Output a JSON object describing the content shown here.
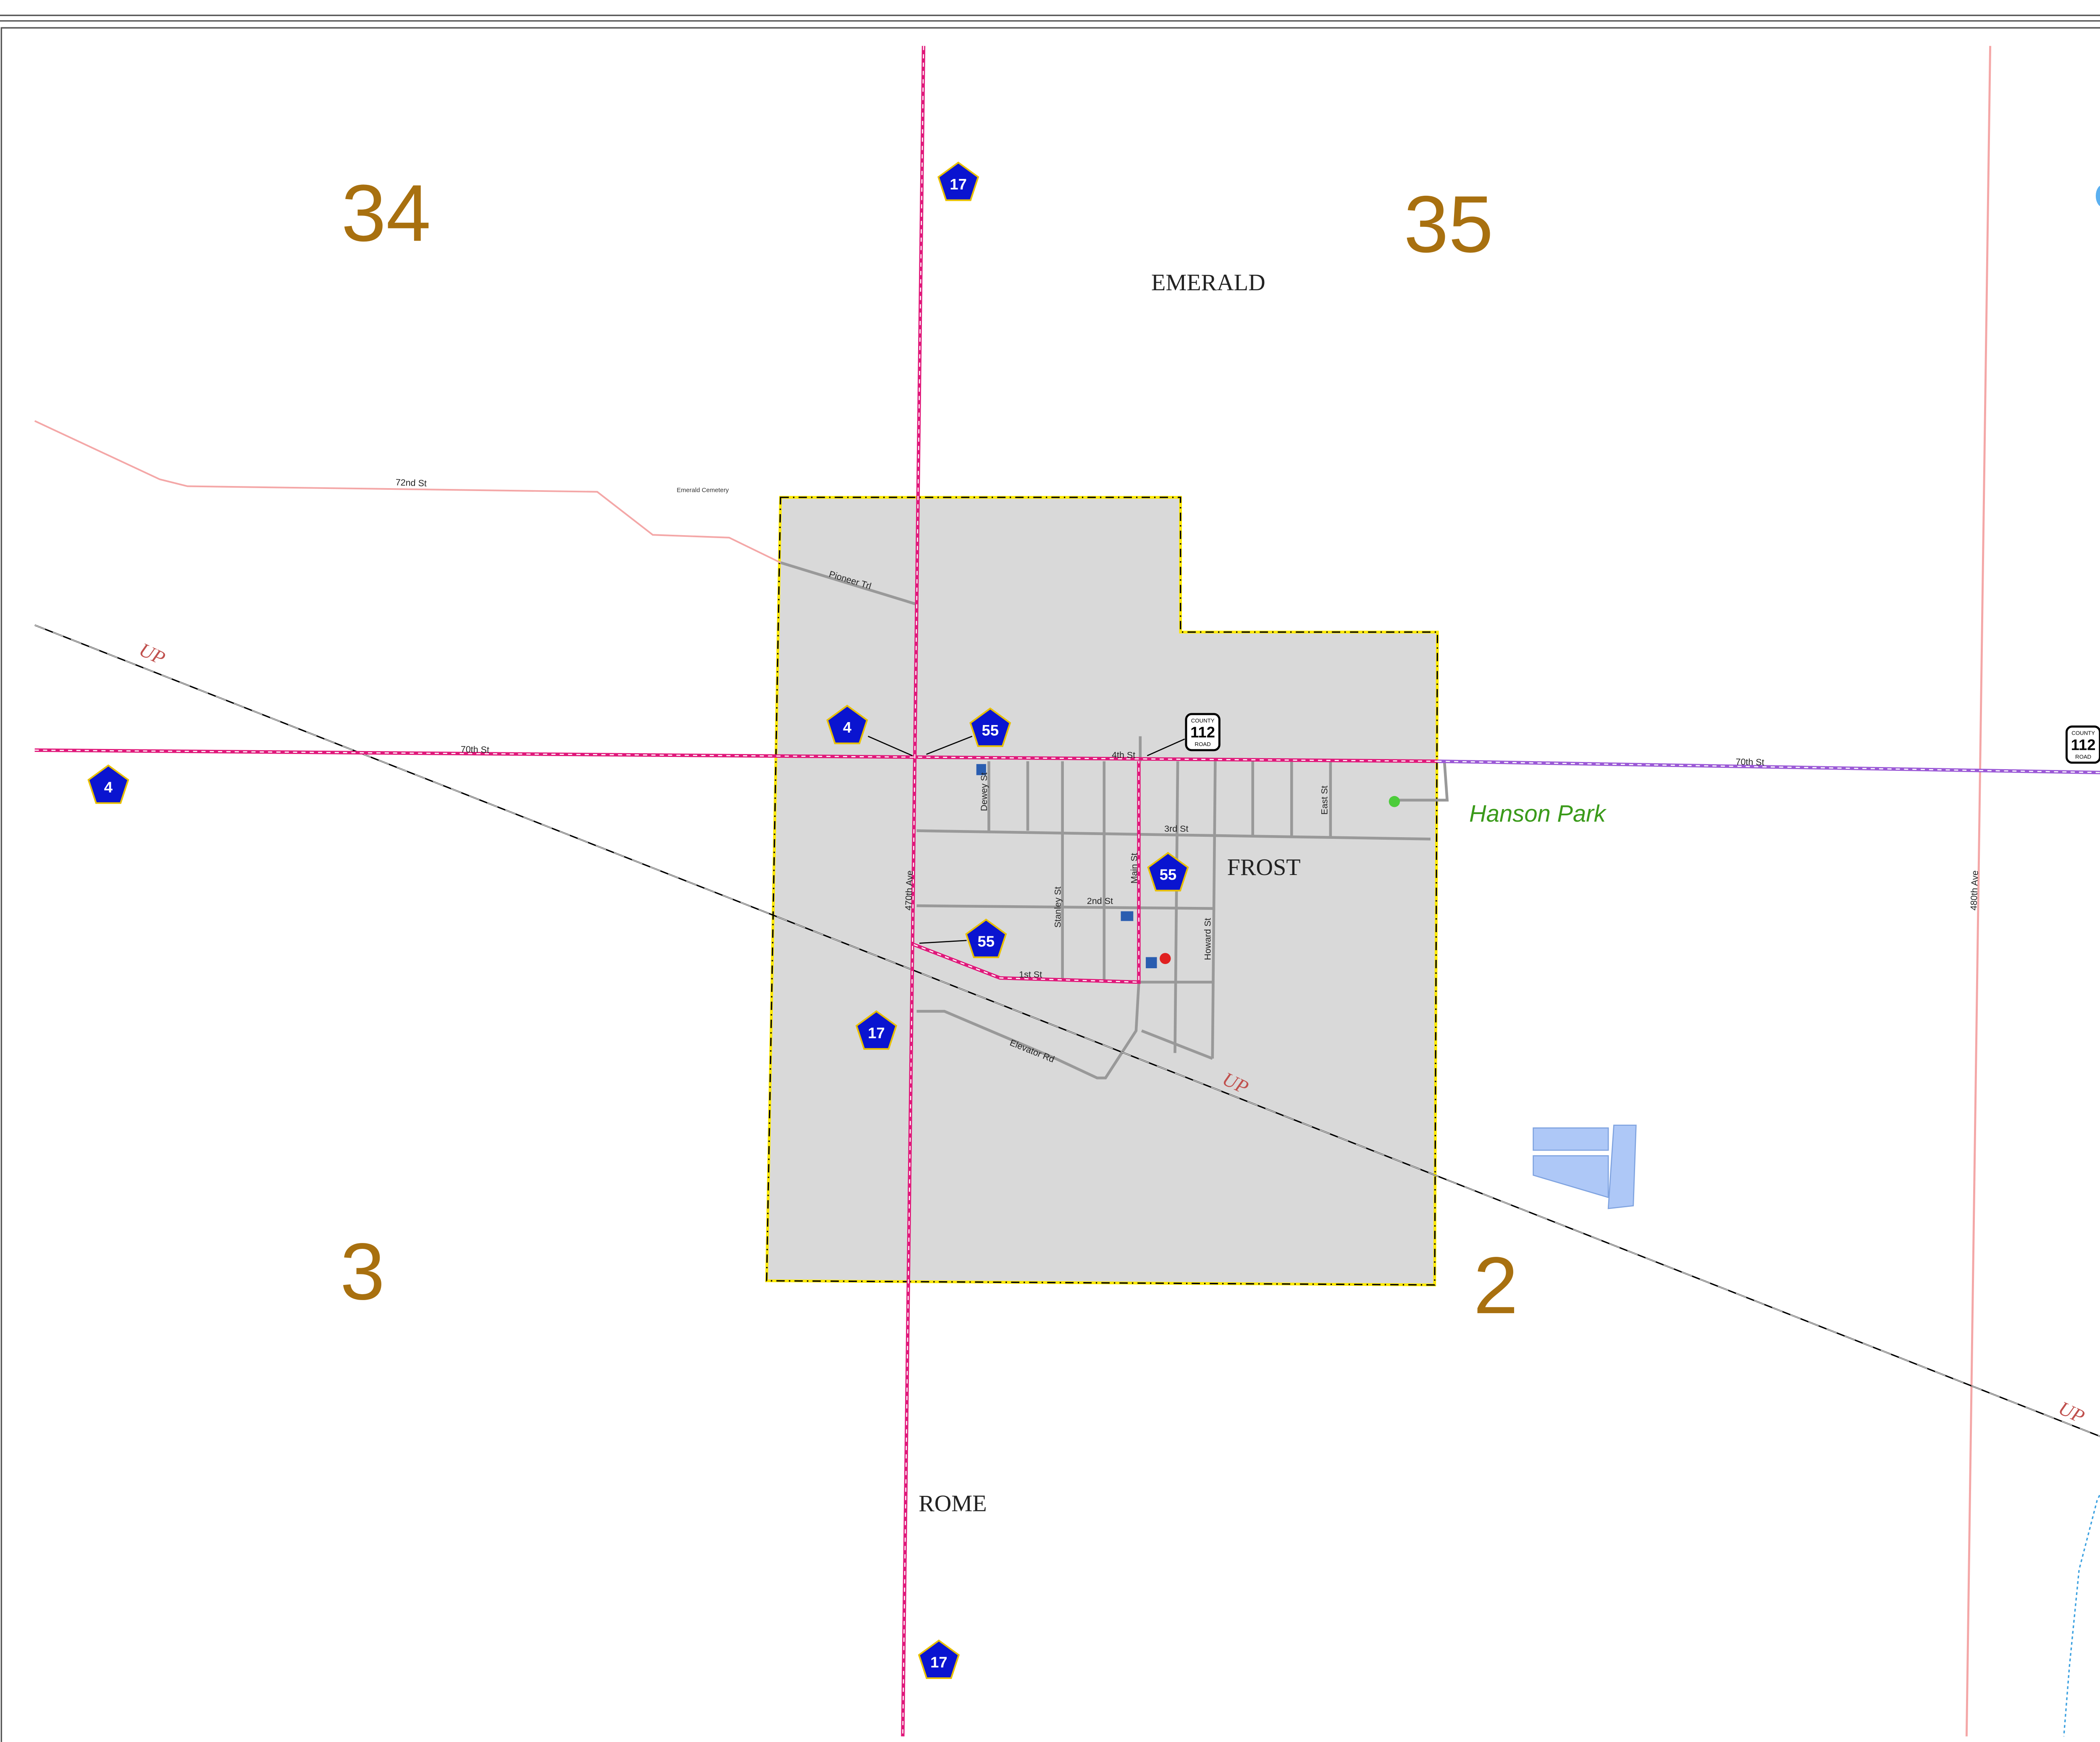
{
  "sections": [
    "34",
    "35",
    "3",
    "2"
  ],
  "places": [
    "EMERALD",
    "FROST",
    "ROME"
  ],
  "streets": [
    "72nd St",
    "Pioneer Trl",
    "70th St",
    "4th St",
    "3rd St",
    "2nd St",
    "1st St",
    "Dewey St",
    "Stanley St",
    "Main St",
    "Howard St",
    "East St",
    "470th Ave",
    "480th Ave",
    "Elevator Rd",
    "70th St"
  ],
  "park": "Hanson Park",
  "cemetery": "Emerald Cemetery",
  "railroad": [
    "UP",
    "UP",
    "UP"
  ],
  "state_routes": [
    "17",
    "17",
    "17",
    "4",
    "4",
    "55",
    "55",
    "55"
  ],
  "county_roads": [
    {
      "top": "COUNTY",
      "number": "112",
      "bottom": "ROAD"
    },
    {
      "top": "COUNTY",
      "number": "112",
      "bottom": "ROAD"
    }
  ]
}
